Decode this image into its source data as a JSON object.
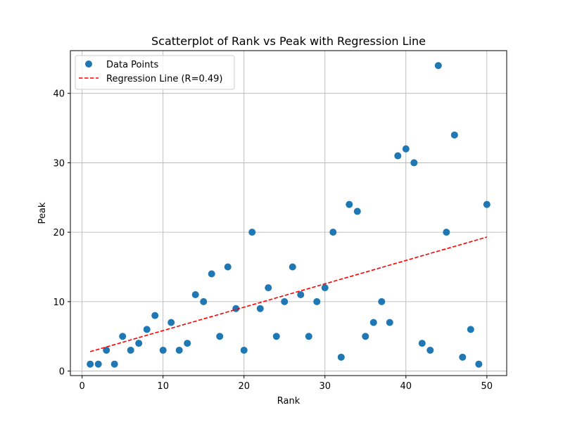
{
  "chart_data": {
    "type": "scatter",
    "title": "Scatterplot of Rank vs Peak with Regression Line",
    "xlabel": "Rank",
    "ylabel": "Peak",
    "xlim": [
      -1.45,
      52.45
    ],
    "ylim": [
      -0.65,
      46.15
    ],
    "xticks": [
      0,
      10,
      20,
      30,
      40,
      50
    ],
    "yticks": [
      0,
      10,
      20,
      30,
      40
    ],
    "grid": true,
    "legend_position": "top-left",
    "series": [
      {
        "name": "Data Points",
        "kind": "scatter",
        "color": "#1f77b4",
        "x": [
          1,
          2,
          3,
          4,
          5,
          6,
          7,
          8,
          9,
          10,
          11,
          12,
          13,
          14,
          15,
          16,
          17,
          18,
          19,
          20,
          21,
          22,
          23,
          24,
          25,
          26,
          27,
          28,
          29,
          30,
          31,
          32,
          33,
          34,
          35,
          36,
          37,
          38,
          39,
          40,
          41,
          42,
          43,
          44,
          45,
          46,
          47,
          48,
          49,
          50
        ],
        "y": [
          1,
          1,
          3,
          1,
          5,
          3,
          4,
          6,
          8,
          3,
          7,
          3,
          4,
          11,
          10,
          14,
          5,
          15,
          9,
          3,
          20,
          9,
          12,
          5,
          10,
          15,
          11,
          5,
          10,
          12,
          20,
          2,
          24,
          23,
          5,
          7,
          10,
          7,
          31,
          32,
          30,
          4,
          3,
          44,
          20,
          34,
          2,
          6,
          1,
          24
        ]
      },
      {
        "name": "Regression Line (R=0.49)",
        "kind": "line",
        "style": "dashed",
        "color": "#ff0000",
        "x": [
          1,
          50
        ],
        "y": [
          2.8,
          19.3
        ]
      }
    ]
  }
}
